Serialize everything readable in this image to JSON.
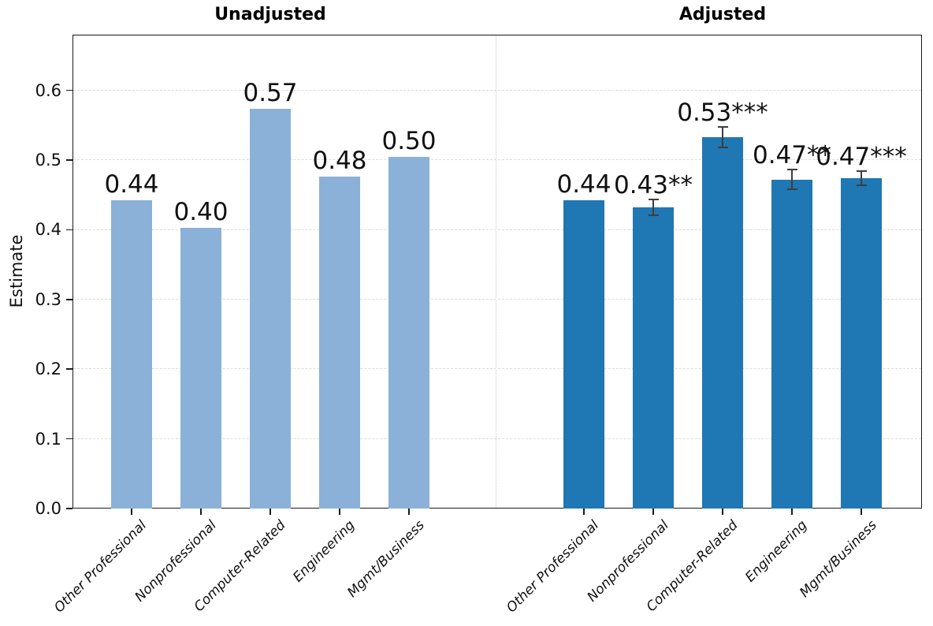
{
  "chart_data": {
    "type": "bar",
    "title": "",
    "ylabel": "Estimate",
    "xlabel": "",
    "ylim": [
      0,
      0.68
    ],
    "yticks": [
      0.0,
      0.1,
      0.2,
      0.3,
      0.4,
      0.5,
      0.6
    ],
    "ytick_labels": [
      "0.0",
      "0.1",
      "0.2",
      "0.3",
      "0.4",
      "0.5",
      "0.6"
    ],
    "grid": "horizontal-dashed",
    "legend": "none",
    "categories": [
      "Other Professional",
      "Nonprofessional",
      "Computer-Related",
      "Engineering",
      "Mgmt/Business"
    ],
    "panels": [
      {
        "title": "Unadjusted",
        "bar_color": "#8bb1d8",
        "values": [
          0.442,
          0.403,
          0.573,
          0.476,
          0.504
        ],
        "labels": [
          "0.44",
          "0.40",
          "0.57",
          "0.48",
          "0.50"
        ],
        "errors": [
          null,
          null,
          null,
          null,
          null
        ]
      },
      {
        "title": "Adjusted",
        "bar_color": "#1f77b4",
        "values": [
          0.442,
          0.432,
          0.533,
          0.472,
          0.474
        ],
        "labels": [
          "0.44",
          "0.43**",
          "0.53***",
          "0.47**",
          "0.47***"
        ],
        "errors": [
          null,
          0.011,
          0.015,
          0.014,
          0.01
        ]
      }
    ],
    "colors": {
      "unadjusted_bar": "#8bb1d8",
      "adjusted_bar": "#1f77b4",
      "error_bar": "#3d3d3d",
      "gridline": "#dcdcdc",
      "divider": "#c6c6c6",
      "spine": "#1a1a1a",
      "text": "#111111"
    }
  }
}
